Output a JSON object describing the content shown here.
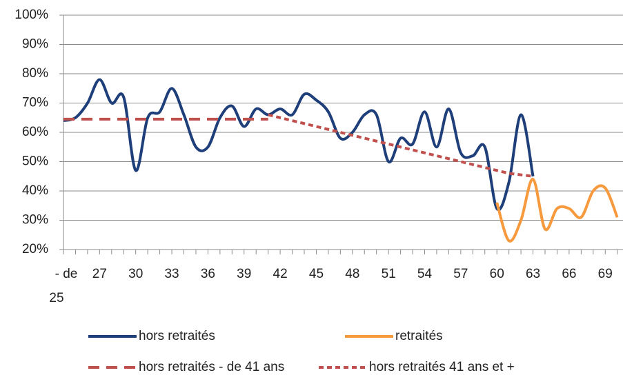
{
  "chart_data": {
    "type": "line",
    "categories": [
      "- de 25",
      null,
      null,
      "27",
      null,
      null,
      "30",
      null,
      null,
      "33",
      null,
      null,
      "36",
      null,
      null,
      "39",
      null,
      null,
      "42",
      null,
      null,
      "45",
      null,
      null,
      "48",
      null,
      null,
      "51",
      null,
      null,
      "54",
      null,
      null,
      "57",
      null,
      null,
      "60",
      null,
      null,
      "63",
      null,
      null,
      "66",
      null,
      null,
      "69",
      null
    ],
    "ylim": [
      20,
      100
    ],
    "yticks": [
      {
        "value": 20,
        "label": "20%"
      },
      {
        "value": 30,
        "label": "30%"
      },
      {
        "value": 40,
        "label": "40%"
      },
      {
        "value": 50,
        "label": "50%"
      },
      {
        "value": 60,
        "label": "60%"
      },
      {
        "value": 70,
        "label": "70%"
      },
      {
        "value": 80,
        "label": "80%"
      },
      {
        "value": 90,
        "label": "90%"
      },
      {
        "value": 100,
        "label": "100%"
      }
    ],
    "grid": true,
    "series": [
      {
        "name": "hors retraités",
        "color": "#1f3f7a",
        "style": "solid",
        "smooth": true,
        "values": [
          64,
          65,
          70,
          78,
          70,
          72,
          47,
          65,
          67,
          75,
          66,
          55,
          55,
          65,
          69,
          62,
          68,
          66,
          68,
          66,
          73,
          71,
          67,
          58,
          60,
          66,
          66,
          50,
          58,
          56,
          67,
          55,
          68,
          53,
          52,
          55,
          34,
          43,
          66,
          45,
          null,
          null,
          null,
          null,
          null,
          null,
          null
        ]
      },
      {
        "name": "retraités",
        "color": "#f79a3e",
        "style": "solid",
        "smooth": true,
        "values": [
          null,
          null,
          null,
          null,
          null,
          null,
          null,
          null,
          null,
          null,
          null,
          null,
          null,
          null,
          null,
          null,
          null,
          null,
          null,
          null,
          null,
          null,
          null,
          null,
          null,
          null,
          null,
          null,
          null,
          null,
          null,
          null,
          null,
          null,
          null,
          null,
          36,
          23,
          30,
          44,
          27,
          34,
          34,
          31,
          40,
          41,
          31
        ]
      },
      {
        "name": "hors retraités - de 41 ans",
        "color": "#c0504d",
        "style": "longdash",
        "smooth": false,
        "values": [
          64.5,
          64.5,
          64.5,
          64.5,
          64.5,
          64.5,
          64.5,
          64.5,
          64.5,
          64.5,
          64.5,
          64.5,
          64.5,
          64.5,
          64.5,
          64.5,
          64.5,
          64.5,
          null,
          null,
          null,
          null,
          null,
          null,
          null,
          null,
          null,
          null,
          null,
          null,
          null,
          null,
          null,
          null,
          null,
          null,
          null,
          null,
          null,
          null,
          null,
          null,
          null,
          null,
          null,
          null,
          null
        ]
      },
      {
        "name": "hors retraités 41 ans et +",
        "color": "#c0504d",
        "style": "shortdash",
        "smooth": false,
        "values": [
          null,
          null,
          null,
          null,
          null,
          null,
          null,
          null,
          null,
          null,
          null,
          null,
          null,
          null,
          null,
          null,
          null,
          66,
          65,
          64,
          63,
          62,
          61,
          60,
          59,
          58,
          57,
          56,
          55,
          54,
          53,
          52,
          51,
          50,
          49,
          48,
          47,
          46,
          45.5,
          45,
          null,
          null,
          null,
          null,
          null,
          null,
          null
        ]
      }
    ]
  }
}
